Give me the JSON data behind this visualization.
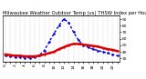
{
  "title": "Milwaukee Weather Outdoor Temp (vs) THSW Index per Hour (Last 24 Hours)",
  "background_color": "#ffffff",
  "grid_color": "#aaaaaa",
  "hours": [
    0,
    1,
    2,
    3,
    4,
    5,
    6,
    7,
    8,
    9,
    10,
    11,
    12,
    13,
    14,
    15,
    16,
    17,
    18,
    19,
    20,
    21,
    22,
    23
  ],
  "temp_values": [
    36,
    35,
    34,
    34,
    33,
    33,
    33,
    34,
    36,
    38,
    40,
    44,
    47,
    50,
    52,
    52,
    51,
    50,
    49,
    48,
    46,
    44,
    43,
    41
  ],
  "thsw_values": [
    34,
    33,
    32,
    32,
    31,
    31,
    32,
    35,
    42,
    55,
    68,
    80,
    90,
    85,
    70,
    58,
    50,
    47,
    44,
    42,
    40,
    38,
    36,
    34
  ],
  "temp_color": "#dd0000",
  "thsw_color": "#0000dd",
  "temp_linewidth": 1.8,
  "thsw_linewidth": 1.0,
  "ylim": [
    25,
    95
  ],
  "yticks_right": [
    30,
    40,
    50,
    60,
    70,
    80,
    90
  ],
  "title_fontsize": 3.8,
  "tick_fontsize": 3.2,
  "figsize": [
    1.6,
    0.87
  ],
  "dpi": 100
}
